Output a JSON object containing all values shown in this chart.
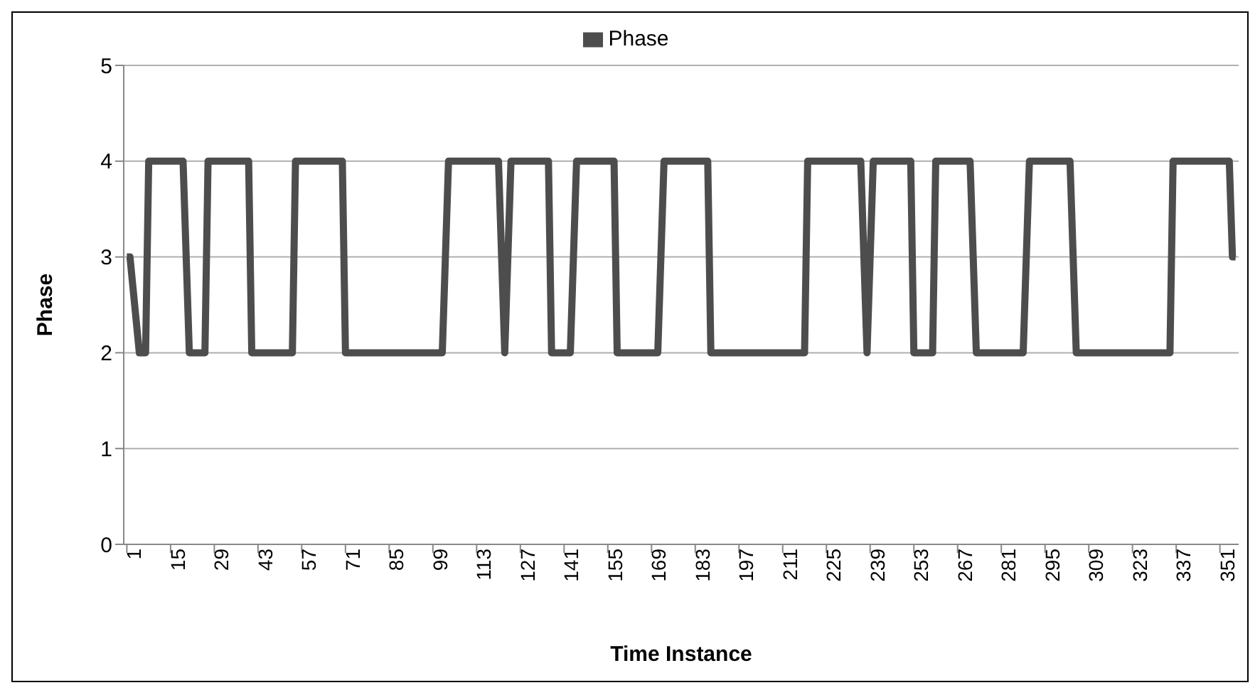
{
  "chart_data": {
    "type": "line",
    "xlabel": "Time Instance",
    "ylabel": "Phase",
    "x": [
      1,
      2,
      5,
      7,
      8,
      19,
      21,
      26,
      27,
      40,
      41,
      54,
      55,
      70,
      71,
      102,
      104,
      120,
      122,
      124,
      136,
      137,
      143,
      145,
      157,
      158,
      171,
      173,
      187,
      188,
      218,
      219,
      236,
      238,
      240,
      252,
      253,
      259,
      260,
      271,
      273,
      288,
      290,
      303,
      305,
      335,
      336,
      354,
      355,
      356
    ],
    "series": [
      {
        "name": "Phase",
        "color": "#4d4d4d",
        "values": [
          3,
          3,
          2,
          2,
          4,
          4,
          2,
          2,
          4,
          4,
          2,
          2,
          4,
          4,
          2,
          2,
          4,
          4,
          2,
          4,
          4,
          2,
          2,
          4,
          4,
          2,
          2,
          4,
          4,
          2,
          2,
          4,
          4,
          2,
          4,
          4,
          2,
          2,
          4,
          4,
          2,
          2,
          4,
          4,
          2,
          2,
          4,
          4,
          3,
          3
        ]
      }
    ],
    "xlim": [
      0,
      357
    ],
    "xticks": [
      1,
      15,
      29,
      43,
      57,
      71,
      85,
      99,
      113,
      127,
      141,
      155,
      169,
      183,
      197,
      211,
      225,
      239,
      253,
      267,
      281,
      295,
      309,
      323,
      337,
      351
    ],
    "ylim": [
      0,
      5
    ],
    "yticks": [
      0,
      1,
      2,
      3,
      4,
      5
    ],
    "grid": "y",
    "legend": "top",
    "marker": "none",
    "line_style": "solid"
  }
}
